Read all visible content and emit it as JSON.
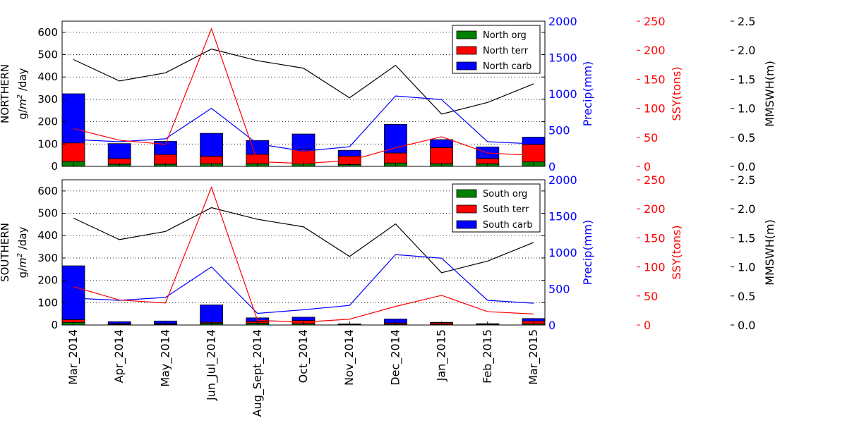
{
  "x_categories": [
    "Mar_2014",
    "Apr_2014",
    "May_2014",
    "Jun_Jul_2014",
    "Aug_Sept_2014",
    "Oct_2014",
    "Nov_2014",
    "Dec_2014",
    "Jan_2015",
    "Feb_2015",
    "Mar_2015"
  ],
  "axis_titles": {
    "precip": "Precip(mm)",
    "ssy": "SSY(tons)",
    "mmswh": "MMSWH(m)"
  },
  "colors": {
    "org": "#008000",
    "terr": "#ff0000",
    "carb": "#0000ff",
    "precip": "#0000ff",
    "ssy": "#ff0000",
    "mmswh": "#000000"
  },
  "chart_data": [
    {
      "type": "bar",
      "stacked": true,
      "ylabel_line1": "NORTHERN",
      "ylabel_line2_pre": "g/",
      "ylabel_line2_m": "m",
      "ylabel_line2_exp": "2",
      "ylabel_line2_post": " /day",
      "ylim": [
        0,
        650
      ],
      "yticks": [
        0,
        100,
        200,
        300,
        400,
        500,
        600
      ],
      "grid": true,
      "legend_position": "top-right",
      "series": [
        {
          "name": "North org",
          "key": "org",
          "values": [
            22,
            10,
            10,
            12,
            12,
            12,
            8,
            15,
            12,
            12,
            20
          ]
        },
        {
          "name": "North terr",
          "key": "terr",
          "values": [
            83,
            25,
            43,
            33,
            42,
            62,
            38,
            45,
            72,
            23,
            78
          ]
        },
        {
          "name": "North carb",
          "key": "carb",
          "values": [
            220,
            67,
            59,
            103,
            62,
            71,
            26,
            128,
            36,
            52,
            33
          ]
        }
      ],
      "precip": {
        "ylim": [
          0,
          2000
        ],
        "yticks": [
          0,
          500,
          1000,
          1500,
          2000
        ],
        "values": [
          370,
          340,
          380,
          800,
          310,
          210,
          270,
          970,
          920,
          340,
          310
        ]
      },
      "ssy": {
        "ylim": [
          0,
          250
        ],
        "yticks": [
          0,
          50,
          100,
          150,
          200,
          250
        ],
        "values": [
          65,
          45,
          38,
          237,
          8,
          5,
          10,
          32,
          51,
          23,
          19
        ]
      },
      "mmswh": {
        "ylim": [
          0,
          2.5
        ],
        "yticks": [
          "0.0",
          "0.5",
          "1.0",
          "1.5",
          "2.0",
          "2.5"
        ],
        "values": [
          1.84,
          1.47,
          1.61,
          2.02,
          1.82,
          1.69,
          1.18,
          1.74,
          0.9,
          1.1,
          1.42
        ]
      }
    },
    {
      "type": "bar",
      "stacked": true,
      "ylabel_line1": "SOUTHERN",
      "ylabel_line2_pre": "g/",
      "ylabel_line2_m": "m",
      "ylabel_line2_exp": "2",
      "ylabel_line2_post": " /day",
      "ylim": [
        0,
        650
      ],
      "yticks": [
        0,
        100,
        200,
        300,
        400,
        500,
        600
      ],
      "grid": true,
      "legend_position": "top-right",
      "series": [
        {
          "name": "South org",
          "key": "org",
          "values": [
            12,
            3,
            3,
            8,
            8,
            6,
            2,
            4,
            3,
            1,
            5
          ]
        },
        {
          "name": "South terr",
          "key": "terr",
          "values": [
            12,
            3,
            3,
            4,
            8,
            14,
            2,
            5,
            7,
            2,
            13
          ]
        },
        {
          "name": "South carb",
          "key": "carb",
          "values": [
            241,
            9,
            12,
            78,
            16,
            15,
            1,
            18,
            2,
            3,
            11
          ]
        }
      ],
      "precip": {
        "ylim": [
          0,
          2000
        ],
        "yticks": [
          0,
          500,
          1000,
          1500,
          2000
        ],
        "values": [
          370,
          340,
          380,
          800,
          160,
          210,
          270,
          970,
          920,
          340,
          300
        ]
      },
      "ssy": {
        "ylim": [
          0,
          250
        ],
        "yticks": [
          0,
          50,
          100,
          150,
          200,
          250
        ],
        "values": [
          66,
          43,
          38,
          237,
          8,
          5,
          10,
          32,
          51,
          23,
          19
        ]
      },
      "mmswh": {
        "ylim": [
          0,
          2.5
        ],
        "yticks": [
          "0.0",
          "0.5",
          "1.0",
          "1.5",
          "2.0",
          "2.5"
        ],
        "values": [
          1.84,
          1.47,
          1.61,
          2.02,
          1.82,
          1.69,
          1.18,
          1.74,
          0.9,
          1.1,
          1.42
        ]
      }
    }
  ]
}
